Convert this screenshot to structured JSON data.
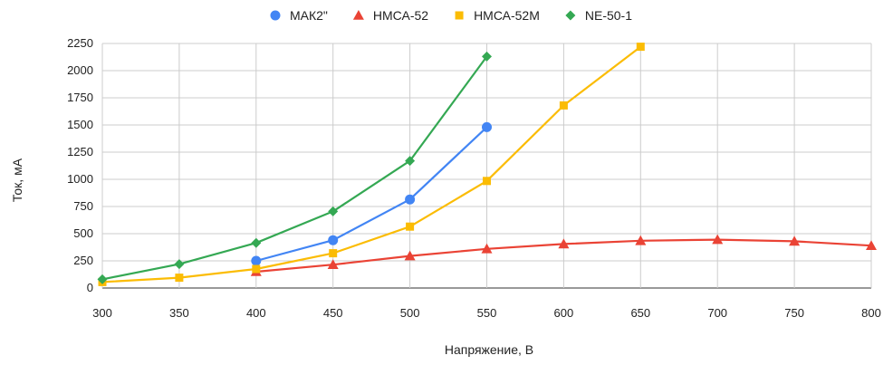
{
  "chart_data": {
    "type": "line",
    "title": "",
    "xlabel": "Напряжение, В",
    "ylabel": "Ток, мА",
    "xlim": [
      300,
      800
    ],
    "ylim": [
      0,
      2250
    ],
    "xticks": [
      300,
      350,
      400,
      450,
      500,
      550,
      600,
      650,
      700,
      750,
      800
    ],
    "yticks": [
      0,
      250,
      500,
      750,
      1000,
      1250,
      1500,
      1750,
      2000,
      2250
    ],
    "grid": true,
    "legend_position": "top",
    "series": [
      {
        "name": "МАК2\"",
        "color": "#4285f4",
        "marker": "circle",
        "x": [
          400,
          450,
          500,
          550
        ],
        "y": [
          250,
          440,
          815,
          1480
        ]
      },
      {
        "name": "НМСА-52",
        "color": "#ea4335",
        "marker": "triangle",
        "x": [
          400,
          450,
          500,
          550,
          600,
          650,
          700,
          750,
          800
        ],
        "y": [
          150,
          215,
          295,
          360,
          405,
          435,
          445,
          430,
          390
        ]
      },
      {
        "name": "НМСА-52М",
        "color": "#fbbc04",
        "marker": "square",
        "x": [
          300,
          350,
          400,
          450,
          500,
          550,
          600,
          650
        ],
        "y": [
          55,
          95,
          175,
          320,
          565,
          985,
          1680,
          2220
        ]
      },
      {
        "name": "NE-50-1",
        "color": "#34a853",
        "marker": "diamond",
        "x": [
          300,
          350,
          400,
          450,
          500,
          550
        ],
        "y": [
          80,
          220,
          415,
          705,
          1170,
          2130
        ]
      }
    ]
  }
}
